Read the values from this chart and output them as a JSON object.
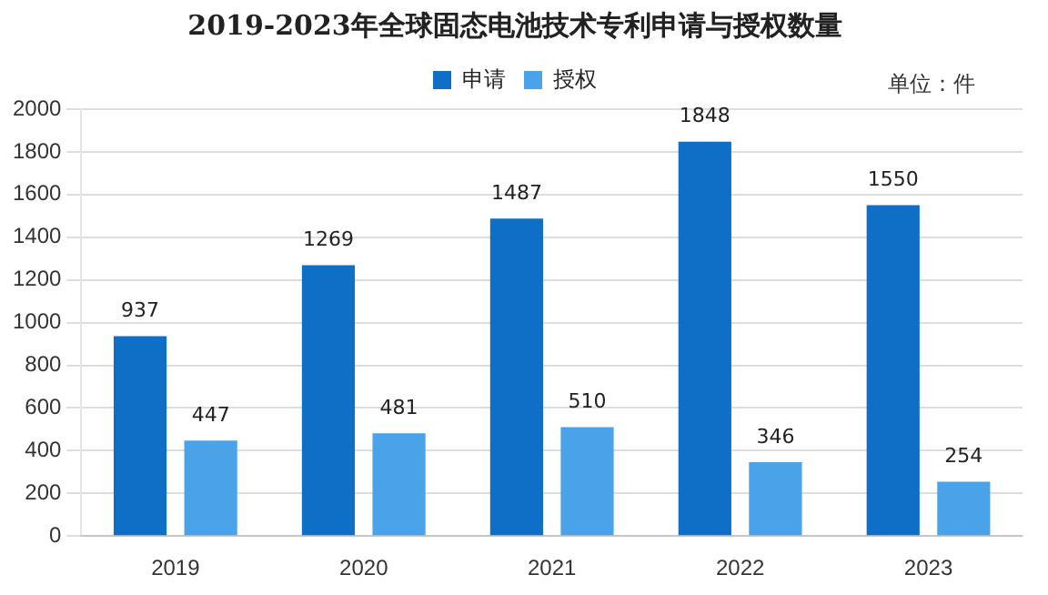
{
  "chart_data": {
    "type": "bar",
    "title": "2019-2023年全球固态电池技术专利申请与授权数量",
    "categories": [
      "2019",
      "2020",
      "2021",
      "2022",
      "2023"
    ],
    "series": [
      {
        "name": "申请",
        "color": "#0f6fc6",
        "values": [
          937,
          1269,
          1487,
          1848,
          1550
        ]
      },
      {
        "name": "授权",
        "color": "#4aa3e8",
        "values": [
          447,
          481,
          510,
          346,
          254
        ]
      }
    ],
    "ylim": [
      0,
      2000
    ],
    "yticks": [
      0,
      200,
      400,
      600,
      800,
      1000,
      1200,
      1400,
      1600,
      1800,
      2000
    ],
    "grid": "y",
    "legend": "top",
    "data_labels": true,
    "annotations": [
      "单位：件"
    ]
  }
}
